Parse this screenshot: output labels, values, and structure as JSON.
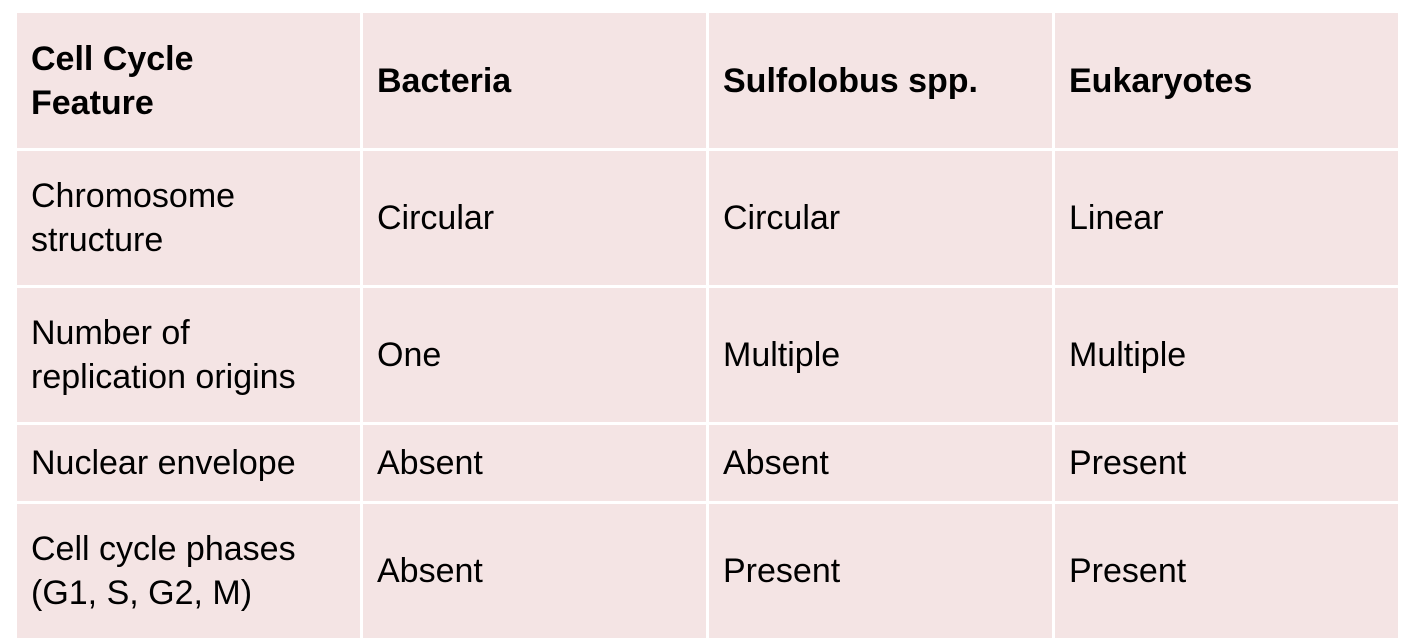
{
  "table": {
    "headers": [
      "Cell Cycle\nFeature",
      "Bacteria",
      "Sulfolobus spp.",
      "Eukaryotes"
    ],
    "rows": [
      [
        "Chromosome\nstructure",
        "Circular",
        "Circular",
        "Linear"
      ],
      [
        "Number of\nreplication origins",
        "One",
        "Multiple",
        "Multiple"
      ],
      [
        "Nuclear envelope",
        "Absent",
        "Absent",
        "Present"
      ],
      [
        "Cell cycle phases\n(G1, S, G2, M)",
        "Absent",
        "Present",
        "Present"
      ]
    ]
  },
  "colors": {
    "cell_background": "#f4e4e4",
    "grid": "#ffffff",
    "text": "#000000"
  }
}
